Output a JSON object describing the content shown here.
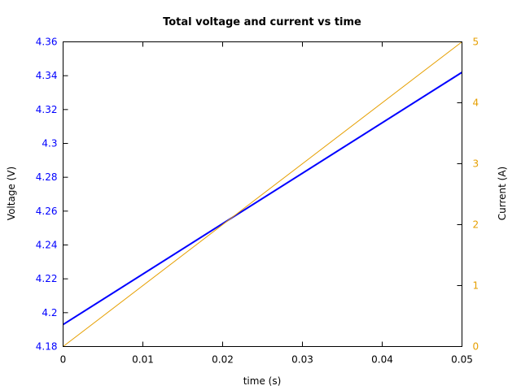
{
  "chart_data": {
    "type": "line",
    "title": "Total voltage and current vs time",
    "xlabel": "time (s)",
    "ylabel_left": "Voltage (V)",
    "ylabel_right": "Current (A)",
    "xlim": [
      0,
      0.05
    ],
    "ylim_left": [
      4.18,
      4.36
    ],
    "ylim_right": [
      0,
      5
    ],
    "x_ticks": [
      "0",
      "0.01",
      "0.02",
      "0.03",
      "0.04",
      "0.05"
    ],
    "left_ticks": [
      "4.18",
      "4.2",
      "4.22",
      "4.24",
      "4.26",
      "4.28",
      "4.3",
      "4.32",
      "4.34",
      "4.36"
    ],
    "right_ticks": [
      "0",
      "1",
      "2",
      "3",
      "4",
      "5"
    ],
    "grid": false,
    "series": [
      {
        "axis": "left",
        "color": "#0000ff",
        "x": [
          0,
          0.05
        ],
        "y": [
          4.193,
          4.342
        ]
      },
      {
        "axis": "right",
        "color": "#e69f00",
        "x": [
          0,
          0.05
        ],
        "y": [
          0,
          5
        ]
      }
    ],
    "colors": {
      "left_axis": "#0000ff",
      "right_axis": "#e69f00",
      "frame": "#000000"
    }
  }
}
